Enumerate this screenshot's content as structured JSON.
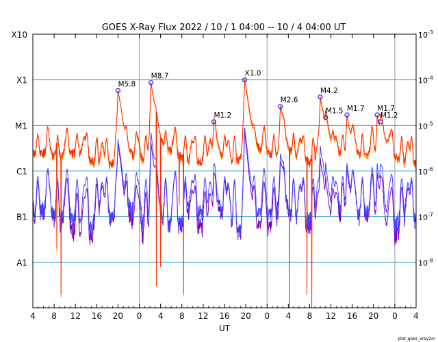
{
  "chart_data": {
    "type": "line",
    "title": "GOES X-Ray Flux   2022 / 10 /  1   04:00 -- 10 /  4   04:00   UT",
    "xlabel": "UT",
    "xlim_hours": [
      0,
      72
    ],
    "x_ticks": [
      {
        "h": 0,
        "label": "4"
      },
      {
        "h": 4,
        "label": "8"
      },
      {
        "h": 8,
        "label": "12"
      },
      {
        "h": 12,
        "label": "16"
      },
      {
        "h": 16,
        "label": "20"
      },
      {
        "h": 20,
        "label": "0"
      },
      {
        "h": 24,
        "label": "4"
      },
      {
        "h": 28,
        "label": "8"
      },
      {
        "h": 32,
        "label": "12"
      },
      {
        "h": 36,
        "label": "16"
      },
      {
        "h": 40,
        "label": "20"
      },
      {
        "h": 44,
        "label": "0"
      },
      {
        "h": 48,
        "label": "4"
      },
      {
        "h": 52,
        "label": "8"
      },
      {
        "h": 56,
        "label": "12"
      },
      {
        "h": 60,
        "label": "16"
      },
      {
        "h": 64,
        "label": "20"
      },
      {
        "h": 68,
        "label": "0"
      },
      {
        "h": 72,
        "label": "4"
      }
    ],
    "day_boundaries_hours": [
      20,
      44,
      68
    ],
    "y_scale": "log",
    "ylim_wm2": [
      1e-09,
      0.001
    ],
    "left_axis_classes": [
      {
        "label": "X10",
        "flux": 0.001
      },
      {
        "label": "X1",
        "flux": 0.0001
      },
      {
        "label": "M1",
        "flux": 1e-05
      },
      {
        "label": "C1",
        "flux": 1e-06
      },
      {
        "label": "B1",
        "flux": 1e-07
      },
      {
        "label": "A1",
        "flux": 1e-08
      }
    ],
    "right_axis_ticks": [
      {
        "exp": "-3",
        "flux": 0.001
      },
      {
        "exp": "-4",
        "flux": 0.0001
      },
      {
        "exp": "-5",
        "flux": 1e-05
      },
      {
        "exp": "-6",
        "flux": 1e-06
      },
      {
        "exp": "-7",
        "flux": 1e-07
      },
      {
        "exp": "-8",
        "flux": 1e-08
      }
    ],
    "right_axis_base": "10",
    "grid_levels": [
      0.0001,
      1e-05,
      1e-06,
      1e-07,
      1e-08
    ],
    "colors": {
      "long_primary": "#ff2a00",
      "long_secondary": "#ff8c00",
      "short_primary": "#4040ff",
      "short_secondary": "#7a00c8",
      "grid": "#4aa8d8",
      "day_line": "#999999",
      "marker": "#1f1fff"
    },
    "flares": [
      {
        "label": "M5.8",
        "h": 16.0,
        "flux": 5.8e-05
      },
      {
        "label": "M8.7",
        "h": 22.2,
        "flux": 8.7e-05
      },
      {
        "label": "M1.2",
        "h": 34.0,
        "flux": 1.2e-05
      },
      {
        "label": "X1.0",
        "h": 39.8,
        "flux": 0.0001
      },
      {
        "label": "M2.6",
        "h": 46.5,
        "flux": 2.6e-05
      },
      {
        "label": "M4.2",
        "h": 54.0,
        "flux": 4.2e-05
      },
      {
        "label": "M1.5",
        "h": 55.0,
        "flux": 1.5e-05
      },
      {
        "label": "M1.7",
        "h": 59.0,
        "flux": 1.7e-05
      },
      {
        "label": "M1.7",
        "h": 64.7,
        "flux": 1.7e-05
      },
      {
        "label": "M1.2",
        "h": 65.3,
        "flux": 1.2e-05
      }
    ],
    "long_channel_dropouts": [
      {
        "h": 4.5,
        "flux": 2e-08
      },
      {
        "h": 5.3,
        "flux": 2e-09
      },
      {
        "h": 23.2,
        "flux": 3e-09
      },
      {
        "h": 24.0,
        "flux": 8e-09
      },
      {
        "h": 27.5,
        "flux": 2e-07
      },
      {
        "h": 28.3,
        "flux": 2e-09
      },
      {
        "h": 48.2,
        "flux": 1e-09
      },
      {
        "h": 51.5,
        "flux": 2e-09
      },
      {
        "h": 52.4,
        "flux": 1e-09
      }
    ]
  },
  "footer": {
    "credit": "plot_goes_xray2m"
  }
}
